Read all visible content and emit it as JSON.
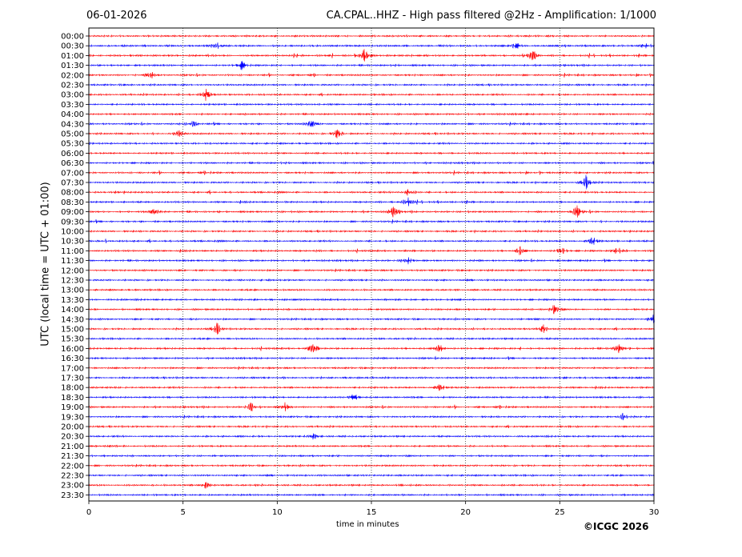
{
  "date": "06-01-2026",
  "title": "CA.CPAL..HHZ - High pass filtered @2Hz - Amplification: 1/1000",
  "copyright": "©ICGC 2026",
  "chart_data": {
    "type": "line",
    "title": "CA.CPAL..HHZ - High pass filtered @2Hz - Amplification: 1/1000",
    "xlabel": "time in minutes",
    "ylabel": "UTC (local time = UTC + 01:00)",
    "xlim": [
      0,
      30
    ],
    "x_ticks": [
      0,
      5,
      10,
      15,
      20,
      25,
      30
    ],
    "vertical_gridlines_at": [
      5,
      10,
      15,
      20,
      25
    ],
    "grid": "dotted vertical",
    "trace_colors": [
      "#ff0000",
      "#0000ff"
    ],
    "rows": [
      "00:00",
      "00:30",
      "01:00",
      "01:30",
      "02:00",
      "02:30",
      "03:00",
      "03:30",
      "04:00",
      "04:30",
      "05:00",
      "05:30",
      "06:00",
      "06:30",
      "07:00",
      "07:30",
      "08:00",
      "08:30",
      "09:00",
      "09:30",
      "10:00",
      "10:30",
      "11:00",
      "11:30",
      "12:00",
      "12:30",
      "13:00",
      "13:30",
      "14:00",
      "14:30",
      "15:00",
      "15:30",
      "16:00",
      "16:30",
      "17:00",
      "17:30",
      "18:00",
      "18:30",
      "19:00",
      "19:30",
      "20:00",
      "20:30",
      "21:00",
      "21:30",
      "22:00",
      "22:30",
      "23:00",
      "23:30"
    ],
    "row_color_pattern": [
      "red",
      "blue"
    ],
    "activity": [
      0.2,
      0.55,
      0.8,
      0.6,
      0.6,
      0.45,
      0.55,
      0.45,
      0.4,
      0.5,
      0.6,
      0.45,
      0.4,
      0.55,
      0.7,
      0.45,
      0.75,
      0.75,
      0.75,
      0.55,
      0.6,
      0.65,
      0.65,
      0.45,
      0.35,
      0.2,
      0.2,
      0.15,
      0.25,
      0.2,
      0.55,
      0.3,
      0.7,
      0.45,
      0.4,
      0.4,
      0.6,
      0.45,
      0.65,
      0.45,
      0.5,
      0.3,
      0.2,
      0.2,
      0.3,
      0.2,
      0.35,
      0.15
    ],
    "events": [
      {
        "row": "00:30",
        "minute": 6.7,
        "amp": 0.35
      },
      {
        "row": "00:30",
        "minute": 22.7,
        "amp": 0.4
      },
      {
        "row": "00:30",
        "minute": 29.6,
        "amp": 0.35
      },
      {
        "row": "01:00",
        "minute": 14.6,
        "amp": 0.6
      },
      {
        "row": "01:00",
        "minute": 23.5,
        "amp": 0.55
      },
      {
        "row": "01:30",
        "minute": 8.1,
        "amp": 0.45
      },
      {
        "row": "02:00",
        "minute": 3.3,
        "amp": 0.35
      },
      {
        "row": "03:00",
        "minute": 6.2,
        "amp": 0.55
      },
      {
        "row": "04:30",
        "minute": 11.8,
        "amp": 0.45
      },
      {
        "row": "04:30",
        "minute": 5.5,
        "amp": 0.35
      },
      {
        "row": "05:00",
        "minute": 13.2,
        "amp": 0.5
      },
      {
        "row": "05:00",
        "minute": 4.8,
        "amp": 0.35
      },
      {
        "row": "07:30",
        "minute": 26.4,
        "amp": 0.7
      },
      {
        "row": "08:00",
        "minute": 16.9,
        "amp": 0.5
      },
      {
        "row": "08:30",
        "minute": 16.9,
        "amp": 0.5
      },
      {
        "row": "09:00",
        "minute": 16.2,
        "amp": 0.6
      },
      {
        "row": "09:00",
        "minute": 3.5,
        "amp": 0.5
      },
      {
        "row": "09:00",
        "minute": 25.9,
        "amp": 0.55
      },
      {
        "row": "10:30",
        "minute": 26.7,
        "amp": 0.6
      },
      {
        "row": "11:00",
        "minute": 28.1,
        "amp": 0.6
      },
      {
        "row": "11:00",
        "minute": 25.1,
        "amp": 0.45
      },
      {
        "row": "11:00",
        "minute": 22.9,
        "amp": 0.45
      },
      {
        "row": "11:30",
        "minute": 16.9,
        "amp": 0.45
      },
      {
        "row": "14:00",
        "minute": 24.7,
        "amp": 0.45
      },
      {
        "row": "14:30",
        "minute": 30.0,
        "amp": 0.5
      },
      {
        "row": "15:00",
        "minute": 6.8,
        "amp": 0.55
      },
      {
        "row": "15:00",
        "minute": 24.1,
        "amp": 0.4
      },
      {
        "row": "16:00",
        "minute": 11.9,
        "amp": 0.5
      },
      {
        "row": "16:00",
        "minute": 18.6,
        "amp": 0.45
      },
      {
        "row": "16:00",
        "minute": 28.1,
        "amp": 0.45
      },
      {
        "row": "18:00",
        "minute": 18.6,
        "amp": 0.55
      },
      {
        "row": "18:30",
        "minute": 14.1,
        "amp": 0.4
      },
      {
        "row": "19:00",
        "minute": 8.6,
        "amp": 0.45
      },
      {
        "row": "19:00",
        "minute": 10.4,
        "amp": 0.4
      },
      {
        "row": "19:30",
        "minute": 28.3,
        "amp": 0.45
      },
      {
        "row": "20:30",
        "minute": 11.9,
        "amp": 0.35
      },
      {
        "row": "23:00",
        "minute": 6.2,
        "amp": 0.3
      }
    ]
  }
}
